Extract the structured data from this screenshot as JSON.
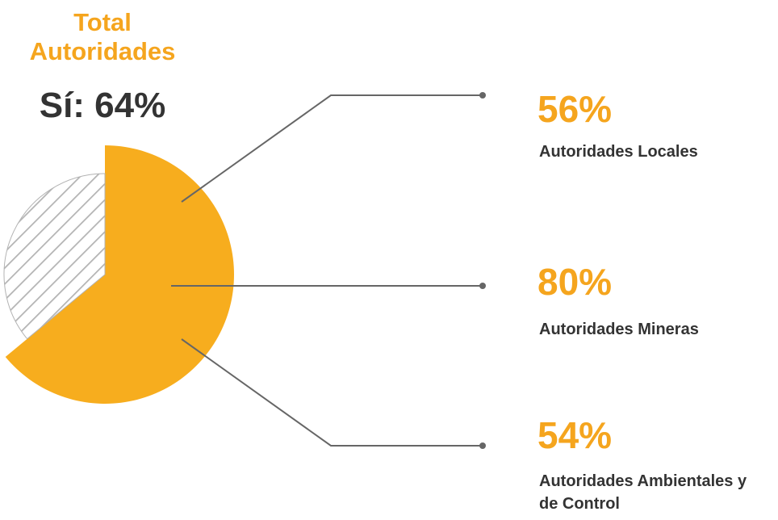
{
  "chart_data": {
    "type": "pie",
    "title": "Total Autoridades",
    "categories": [
      "Sí",
      null
    ],
    "values": [
      64,
      36
    ],
    "value_labels": [
      "Sí: 64%",
      null
    ],
    "colors": [
      "#f7ad1e",
      "#b3b3b3"
    ],
    "breakdown": {
      "categories": [
        "Autoridades Locales",
        "Autoridades Mineras",
        "Autoridades Ambientales y de Control"
      ],
      "values": [
        56,
        80,
        54
      ],
      "value_labels": [
        "56%",
        "80%",
        "54%"
      ]
    }
  }
}
